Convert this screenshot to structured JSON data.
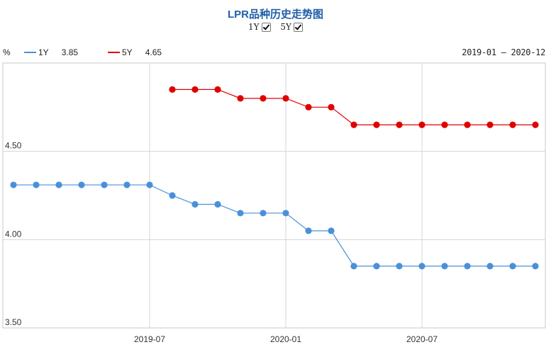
{
  "header": {
    "title": "LPR品种历史走势图",
    "toggles": [
      {
        "label": "1Y",
        "checked": true
      },
      {
        "label": "5Y",
        "checked": true
      }
    ]
  },
  "legend": {
    "unit": "%",
    "items": [
      {
        "name": "1Y",
        "value": "3.85",
        "color": "#4a90d9"
      },
      {
        "name": "5Y",
        "value": "4.65",
        "color": "#e00000"
      }
    ],
    "range": "2019-01 – 2020-12"
  },
  "chart_data": {
    "type": "line",
    "ylim": [
      3.5,
      5.0
    ],
    "y_ticks": [
      "4.50",
      "4.00",
      "3.50"
    ],
    "x_ticks": [
      "2019-07",
      "2020-01",
      "2020-07"
    ],
    "grid": true,
    "x": [
      "2019-01",
      "2019-02",
      "2019-03",
      "2019-04",
      "2019-05",
      "2019-06",
      "2019-07",
      "2019-08",
      "2019-09",
      "2019-10",
      "2019-11",
      "2019-12",
      "2020-01",
      "2020-02",
      "2020-03",
      "2020-04",
      "2020-05",
      "2020-06",
      "2020-07",
      "2020-08",
      "2020-09",
      "2020-10",
      "2020-11",
      "2020-12"
    ],
    "series": [
      {
        "name": "1Y",
        "color": "#4a90d9",
        "values": [
          4.31,
          4.31,
          4.31,
          4.31,
          4.31,
          4.31,
          4.31,
          4.25,
          4.2,
          4.2,
          4.15,
          4.15,
          4.15,
          4.05,
          4.05,
          3.85,
          3.85,
          3.85,
          3.85,
          3.85,
          3.85,
          3.85,
          3.85,
          3.85
        ]
      },
      {
        "name": "5Y",
        "color": "#e00000",
        "values": [
          null,
          null,
          null,
          null,
          null,
          null,
          null,
          4.85,
          4.85,
          4.85,
          4.8,
          4.8,
          4.8,
          4.75,
          4.75,
          4.65,
          4.65,
          4.65,
          4.65,
          4.65,
          4.65,
          4.65,
          4.65,
          4.65
        ]
      }
    ]
  }
}
